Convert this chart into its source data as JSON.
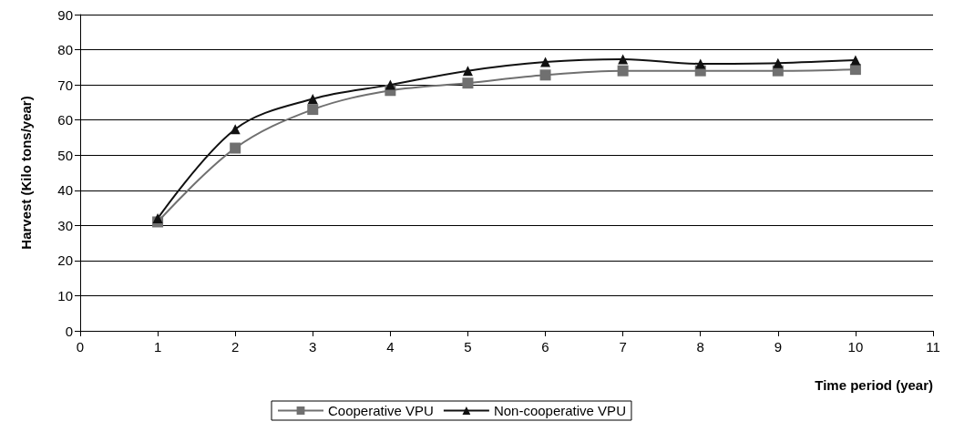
{
  "chart_data": {
    "type": "line",
    "xlabel": "Time period (year)",
    "ylabel": "Harvest (Kilo tons/year)",
    "x": [
      1,
      2,
      3,
      4,
      5,
      6,
      7,
      8,
      9,
      10
    ],
    "series": [
      {
        "name": "Cooperative VPU",
        "color": "#707070",
        "marker": "square",
        "values": [
          31,
          52,
          63,
          68.4,
          70.5,
          72.8,
          74,
          74,
          74,
          74.4
        ]
      },
      {
        "name": "Non-cooperative VPU",
        "color": "#111111",
        "marker": "triangle",
        "values": [
          32,
          57.4,
          66,
          70,
          74,
          76.5,
          77.3,
          76,
          76.2,
          77
        ]
      }
    ],
    "xlim": [
      0,
      11
    ],
    "xticks": [
      0,
      1,
      2,
      3,
      4,
      5,
      6,
      7,
      8,
      9,
      10,
      11
    ],
    "ylim": [
      0,
      90
    ],
    "yticks": [
      0,
      10,
      20,
      30,
      40,
      50,
      60,
      70,
      80,
      90
    ],
    "grid": "y",
    "legend": "bottom",
    "line_style": "solid"
  }
}
